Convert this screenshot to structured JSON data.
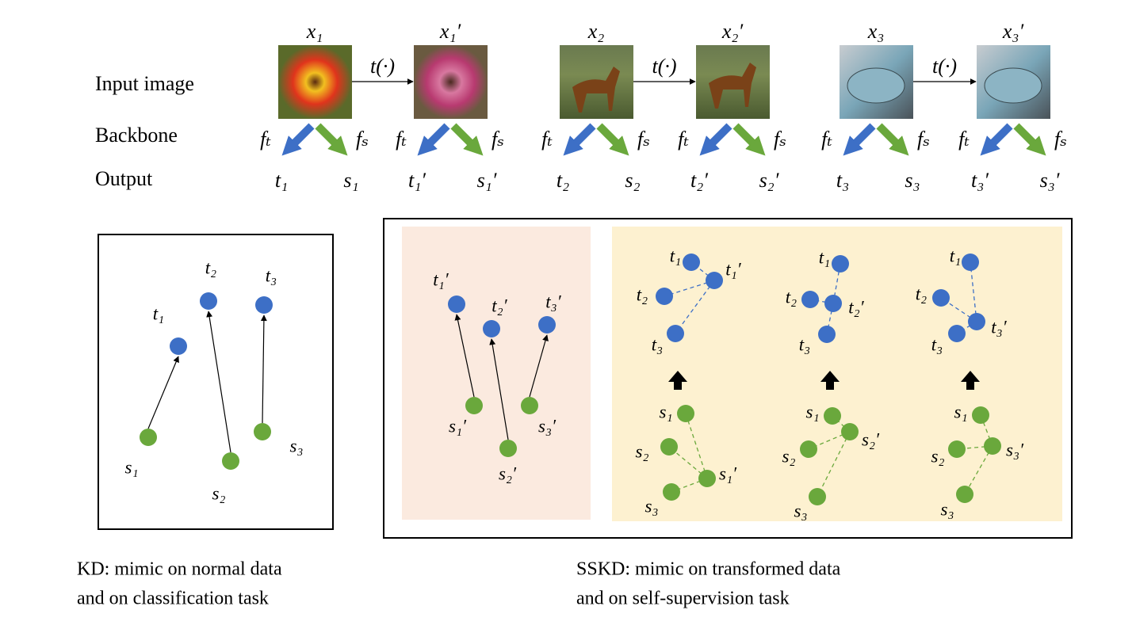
{
  "top": {
    "row_labels": [
      "Input image",
      "Backbone",
      "Output"
    ],
    "images": [
      "x₁",
      "x₁′",
      "x₂",
      "x₂′",
      "x₃",
      "x₃′"
    ],
    "transforms": [
      "t(·)",
      "t(·)",
      "t(·)"
    ],
    "backbone": [
      {
        "teacher": "fₜ",
        "student": "fₛ"
      },
      {
        "teacher": "fₜ",
        "student": "fₛ"
      },
      {
        "teacher": "fₜ",
        "student": "fₛ"
      },
      {
        "teacher": "fₜ",
        "student": "fₛ"
      },
      {
        "teacher": "fₜ",
        "student": "fₛ"
      },
      {
        "teacher": "fₜ",
        "student": "fₛ"
      }
    ],
    "outputs": [
      {
        "teacher": "t₁",
        "student": "s₁"
      },
      {
        "teacher": "t₁′",
        "student": "s₁′"
      },
      {
        "teacher": "t₂",
        "student": "s₂"
      },
      {
        "teacher": "t₂′",
        "student": "s₂′"
      },
      {
        "teacher": "t₃",
        "student": "s₃"
      },
      {
        "teacher": "t₃′",
        "student": "s₃′"
      }
    ]
  },
  "kd_panel": {
    "teacher_labels": [
      "t₁",
      "t₂",
      "t₃"
    ],
    "student_labels": [
      "s₁",
      "s₂",
      "s₃"
    ]
  },
  "sskd_panel": {
    "mimic": {
      "teacher_labels": [
        "t₁′",
        "t₂′",
        "t₃′"
      ],
      "student_labels": [
        "s₁′",
        "s₂′",
        "s₃′"
      ]
    },
    "relations": [
      {
        "teacher_labels": [
          "t₁",
          "t₁′",
          "t₂",
          "t₃"
        ],
        "student_labels": [
          "s₁",
          "s₂",
          "s₃",
          "s₁′"
        ]
      },
      {
        "teacher_labels": [
          "t₁",
          "t₂",
          "t₂′",
          "t₃"
        ],
        "student_labels": [
          "s₁",
          "s₂′",
          "s₂",
          "s₃"
        ]
      },
      {
        "teacher_labels": [
          "t₁",
          "t₂",
          "t₃′",
          "t₃"
        ],
        "student_labels": [
          "s₁",
          "s₃′",
          "s₂",
          "s₃"
        ]
      }
    ]
  },
  "captions": {
    "kd": [
      "KD: mimic on normal data",
      "and on classification task"
    ],
    "sskd": [
      "SSKD: mimic on transformed data",
      "and on self-supervision task"
    ]
  }
}
